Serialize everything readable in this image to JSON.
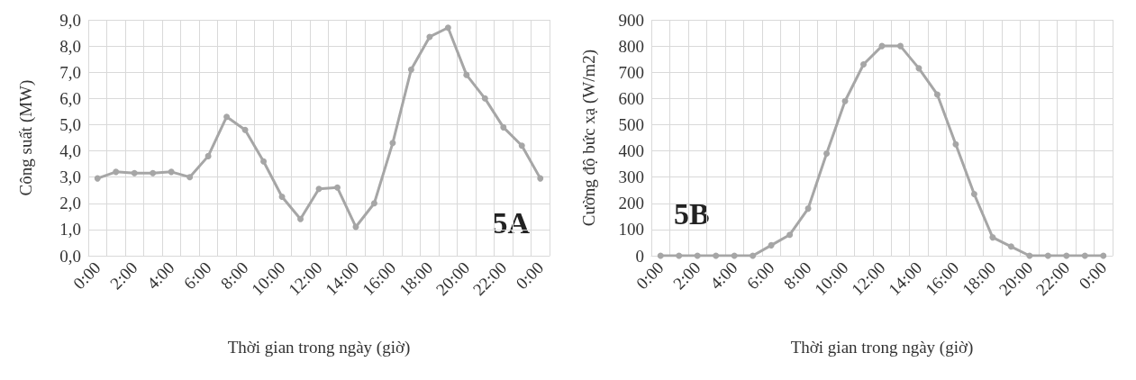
{
  "chart_data": [
    {
      "type": "line",
      "xlabel": "Thời gian trong ngày (giờ)",
      "ylabel": "Công suất (MW)",
      "annotations": [
        "5A"
      ],
      "categories": [
        "0:00",
        null,
        "2:00",
        null,
        "4:00",
        null,
        "6:00",
        null,
        "8:00",
        null,
        "10:00",
        null,
        "12:00",
        null,
        "14:00",
        null,
        "16:00",
        null,
        "18:00",
        null,
        "20:00",
        null,
        "22:00",
        null,
        "0:00"
      ],
      "series": [
        {
          "color": "#a6a6a6",
          "values": [
            2.95,
            3.2,
            3.15,
            3.15,
            3.2,
            3.0,
            3.8,
            5.3,
            4.8,
            3.6,
            2.25,
            1.4,
            2.55,
            2.6,
            1.1,
            2.0,
            4.3,
            7.1,
            8.35,
            8.7,
            6.9,
            6.0,
            4.9,
            4.2,
            2.95
          ]
        }
      ],
      "ylim": [
        0,
        9
      ],
      "yticks": [
        {
          "value": 0,
          "label": "0,0"
        },
        {
          "value": 1,
          "label": "1,0"
        },
        {
          "value": 2,
          "label": "2,0"
        },
        {
          "value": 3,
          "label": "3,0"
        },
        {
          "value": 4,
          "label": "4,0"
        },
        {
          "value": 5,
          "label": "5,0"
        },
        {
          "value": 6,
          "label": "6,0"
        },
        {
          "value": 7,
          "label": "7,0"
        },
        {
          "value": 8,
          "label": "8,0"
        },
        {
          "value": 9,
          "label": "9,0"
        }
      ],
      "grid": true,
      "marker": "circle",
      "line_style": "solid"
    },
    {
      "type": "line",
      "xlabel": "Thời gian trong ngày (giờ)",
      "ylabel": "Cường độ bức xạ (W/m2)",
      "annotations": [
        "5B"
      ],
      "categories": [
        "0:00",
        null,
        "2:00",
        null,
        "4:00",
        null,
        "6:00",
        null,
        "8:00",
        null,
        "10:00",
        null,
        "12:00",
        null,
        "14:00",
        null,
        "16:00",
        null,
        "18:00",
        null,
        "20:00",
        null,
        "22:00",
        null,
        "0:00"
      ],
      "series": [
        {
          "color": "#a6a6a6",
          "values": [
            0,
            0,
            0,
            0,
            0,
            0,
            40,
            80,
            180,
            390,
            590,
            730,
            800,
            800,
            715,
            615,
            425,
            235,
            70,
            35,
            0,
            0,
            0,
            0,
            0
          ]
        }
      ],
      "ylim": [
        0,
        900
      ],
      "yticks": [
        0,
        100,
        200,
        300,
        400,
        500,
        600,
        700,
        800,
        900
      ],
      "grid": true,
      "marker": "circle",
      "line_style": "solid"
    }
  ]
}
